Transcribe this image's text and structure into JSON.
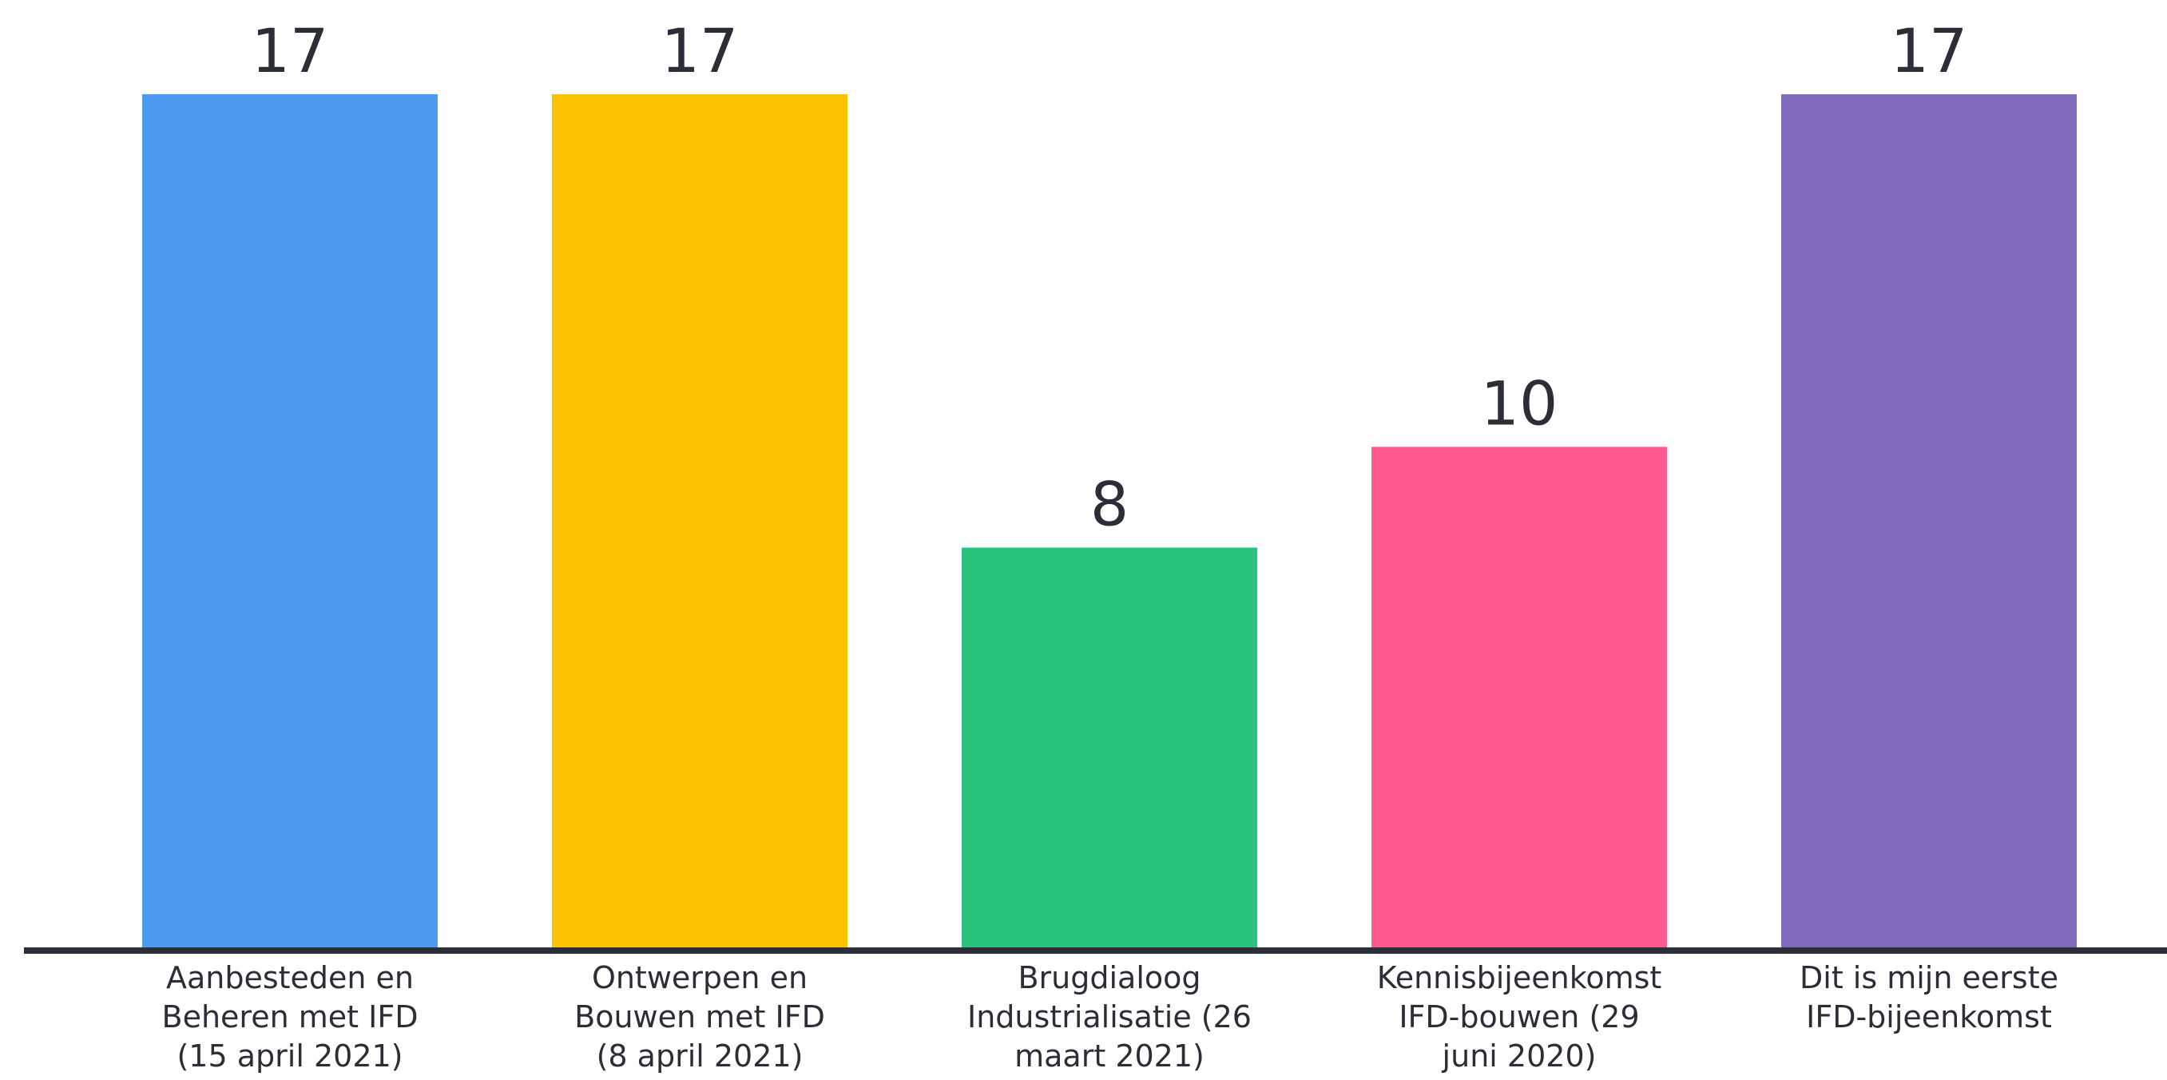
{
  "chart_data": {
    "type": "bar",
    "categories": [
      [
        "Aanbesteden en",
        "Beheren met IFD",
        "(15 april 2021)"
      ],
      [
        "Ontwerpen en",
        "Bouwen met IFD",
        "(8 april 2021)"
      ],
      [
        "Brugdialoog",
        "Industrialisatie (26",
        "maart 2021)"
      ],
      [
        "Kennisbijeenkomst",
        "IFD-bouwen (29",
        "juni 2020)"
      ],
      [
        "Dit is mijn eerste",
        "IFD-bijeenkomst"
      ]
    ],
    "values": [
      17,
      17,
      8,
      10,
      17
    ],
    "colors": [
      "#4d9bf0",
      "#fcc200",
      "#29c37f",
      "#ff5b8d",
      "#7f69bc"
    ],
    "ylim": [
      0,
      17
    ],
    "grid": false,
    "legend": "none",
    "axis_color": "#2b2e36"
  }
}
